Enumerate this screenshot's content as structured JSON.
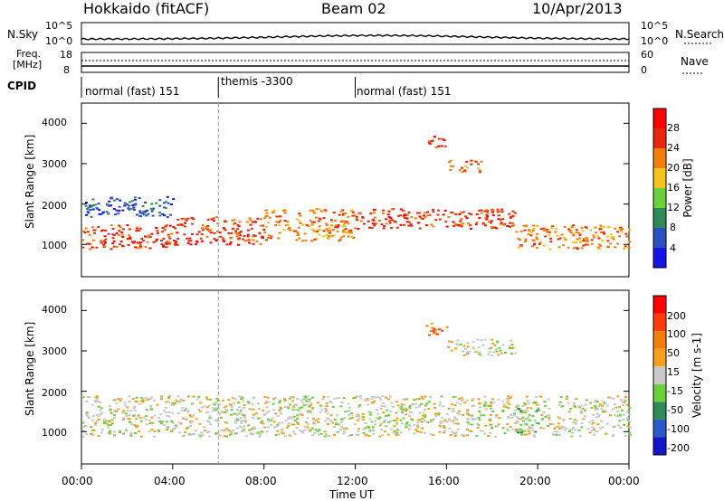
{
  "header": {
    "station": "Hokkaido (fitACF)",
    "beam": "Beam 02",
    "date": "10/Apr/2013"
  },
  "noise_panel": {
    "label_left": "N.Sky",
    "label_right": "N.Search",
    "ticks_left": [
      "10^5",
      "10^0"
    ],
    "ticks_right": [
      "10^5",
      "10^0"
    ]
  },
  "freq_panel": {
    "label_left_1": "Freq.",
    "label_left_2": "[MHz]",
    "label_right": "Nave",
    "ticks_left": [
      "18",
      "8"
    ],
    "ticks_right": [
      "60",
      "0"
    ]
  },
  "cpid_panel": {
    "label": "CPID",
    "segments": [
      {
        "label": "normal (fast) 151",
        "start_hour": 0,
        "end_hour": 6
      },
      {
        "label": "themis -3300",
        "start_hour": 6,
        "end_hour": 12
      },
      {
        "label": "normal (fast) 151",
        "start_hour": 12,
        "end_hour": 24
      }
    ]
  },
  "chart_data": [
    {
      "type": "heatmap",
      "name": "power",
      "ylabel": "Slant Range [km]",
      "xlim": [
        0,
        24
      ],
      "ylim": [
        200,
        4500
      ],
      "yticks": [
        "1000",
        "2000",
        "3000",
        "4000"
      ],
      "colorbar": {
        "label": "Power [dB]",
        "ticks": [
          "4",
          "8",
          "12",
          "16",
          "20",
          "24",
          "28"
        ],
        "colors": [
          "#1414e6",
          "#2a52be",
          "#2e8b57",
          "#6ecf3c",
          "#f5c31c",
          "#f57d0a",
          "#e8280a",
          "#ff0000"
        ]
      },
      "bands": [
        {
          "t0": 0,
          "t1": 4,
          "r0": 900,
          "r1": 1500,
          "level": 6
        },
        {
          "t0": 4,
          "t1": 8,
          "r0": 1000,
          "r1": 1700,
          "level": 6
        },
        {
          "t0": 8,
          "t1": 12,
          "r0": 1100,
          "r1": 1900,
          "level": 5
        },
        {
          "t0": 12,
          "t1": 19,
          "r0": 1400,
          "r1": 1900,
          "level": 6
        },
        {
          "t0": 19,
          "t1": 24,
          "r0": 900,
          "r1": 1500,
          "level": 5
        },
        {
          "t0": 0,
          "t1": 4,
          "r0": 1700,
          "r1": 2200,
          "level": 1
        },
        {
          "t0": 15,
          "t1": 16,
          "r0": 3400,
          "r1": 3700,
          "level": 6
        },
        {
          "t0": 16,
          "t1": 17.5,
          "r0": 2800,
          "r1": 3100,
          "level": 5
        }
      ]
    },
    {
      "type": "heatmap",
      "name": "velocity",
      "ylabel": "Slant Range [km]",
      "xlim": [
        0,
        24
      ],
      "ylim": [
        200,
        4500
      ],
      "yticks": [
        "1000",
        "2000",
        "3000",
        "4000"
      ],
      "colorbar": {
        "label": "Velocity [m s-1]",
        "ticks": [
          "200",
          "100",
          "50",
          "15",
          "-15",
          "-50",
          "-100",
          "-200"
        ],
        "colors": [
          "#1414c8",
          "#2a5ac8",
          "#2e8b57",
          "#6ecf3c",
          "#c8c8c8",
          "#f5a01c",
          "#f57d0a",
          "#ff3c0a",
          "#ff0000"
        ]
      },
      "bands": [
        {
          "t0": 0,
          "t1": 24,
          "r0": 900,
          "r1": 1900,
          "level": 4
        },
        {
          "t0": 15,
          "t1": 16,
          "r0": 3400,
          "r1": 3700,
          "level": 6
        },
        {
          "t0": 16,
          "t1": 19,
          "r0": 2900,
          "r1": 3300,
          "level": 4
        },
        {
          "t0": 19,
          "t1": 20,
          "r0": 1000,
          "r1": 1600,
          "level": 3
        }
      ]
    }
  ],
  "xaxis": {
    "label": "Time UT",
    "ticks": [
      "00:00",
      "04:00",
      "08:00",
      "12:00",
      "16:00",
      "20:00",
      "00:00"
    ]
  }
}
